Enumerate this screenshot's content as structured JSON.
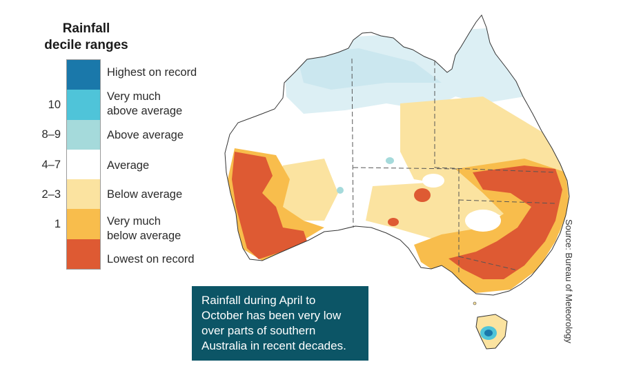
{
  "legend": {
    "title_line1": "Rainfall",
    "title_line2": "decile ranges",
    "categories": [
      {
        "label_line1": "Highest on record",
        "label_line2": "",
        "decile": "",
        "color": "#1a78aa"
      },
      {
        "label_line1": "Very much",
        "label_line2": "above average",
        "decile": "10",
        "color": "#4fc4d9"
      },
      {
        "label_line1": "Above average",
        "label_line2": "",
        "decile": "8–9",
        "color": "#a5dadb"
      },
      {
        "label_line1": "Average",
        "label_line2": "",
        "decile": "4–7",
        "color": "#ffffff"
      },
      {
        "label_line1": "Below average",
        "label_line2": "",
        "decile": "2–3",
        "color": "#fbe3a0"
      },
      {
        "label_line1": "Very much",
        "label_line2": "below average",
        "decile": "1",
        "color": "#f8bd4c"
      },
      {
        "label_line1": "Lowest on record",
        "label_line2": "",
        "decile": "",
        "color": "#de5a33"
      }
    ]
  },
  "callout": {
    "text": "Rainfall during April to October has been very low over parts of southern Australia in recent decades."
  },
  "source": "Source: Bureau of Meteorology",
  "map": {
    "subject": "Australia rainfall deciles",
    "state_border_color": "#555555",
    "coast_color": "#333333"
  }
}
